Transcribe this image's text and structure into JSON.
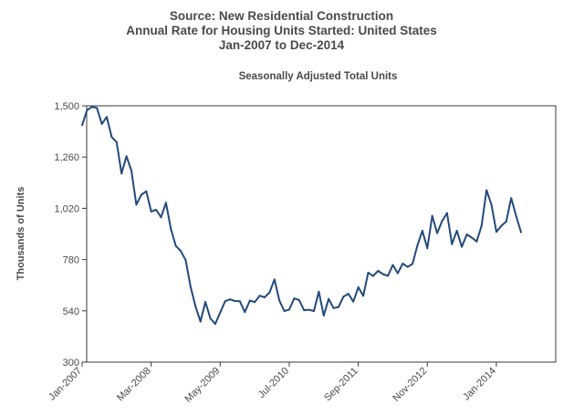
{
  "chart_data": {
    "type": "line",
    "title": [
      "Source: New Residential Construction",
      "Annual Rate for Housing Units Started: United States",
      "Jan-2007 to Dec-2014"
    ],
    "subtitle": "Seasonally Adjusted Total Units",
    "ylabel": "Thousands of Units",
    "xlabel": "",
    "ylim": [
      300,
      1500
    ],
    "yticks": [
      300,
      540,
      780,
      1020,
      1260,
      1500
    ],
    "ytick_labels": [
      "300",
      "540",
      "780",
      "1,020",
      "1,260",
      "1,500"
    ],
    "xtick_labels": [
      "Jan-2007",
      "Mar-2008",
      "May-2009",
      "Jul-2010",
      "Sep-2011",
      "Nov-2012",
      "Jan-2014"
    ],
    "xtick_month_index": [
      0,
      14,
      28,
      42,
      56,
      70,
      84
    ],
    "grid": false,
    "series": [
      {
        "color": "#234a7a",
        "x_start": "Jan-2007",
        "values": [
          1409,
          1480,
          1495,
          1490,
          1415,
          1448,
          1354,
          1330,
          1183,
          1264,
          1197,
          1037,
          1083,
          1100,
          1005,
          1013,
          978,
          1046,
          923,
          844,
          820,
          777,
          652,
          560,
          490,
          582,
          505,
          479,
          532,
          585,
          594,
          586,
          585,
          534,
          588,
          581,
          611,
          603,
          626,
          687,
          588,
          539,
          546,
          598,
          591,
          543,
          545,
          539,
          630,
          518,
          596,
          553,
          558,
          606,
          620,
          583,
          650,
          610,
          719,
          703,
          727,
          712,
          704,
          755,
          716,
          761,
          746,
          760,
          847,
          915,
          833,
          985,
          904,
          960,
          998,
          852,
          915,
          840,
          898,
          883,
          865,
          939,
          1105,
          1037,
          910,
          938,
          958,
          1068,
          985,
          908
        ]
      }
    ]
  }
}
